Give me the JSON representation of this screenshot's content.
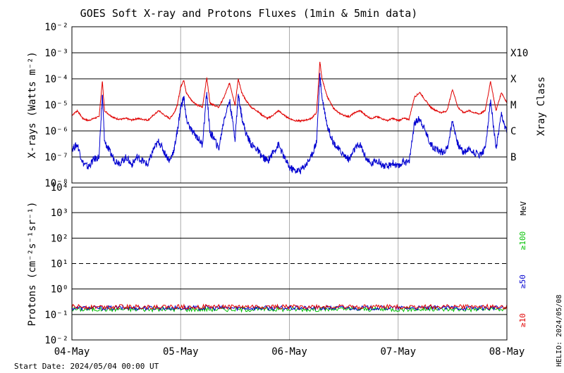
{
  "title": "GOES Soft X-ray and Protons Fluxes   (1min & 5min data)",
  "start_date": "Start Date: 2024/05/04 00:00 UT",
  "credit": "HELIO: 2024/05/08",
  "chart_data": [
    {
      "type": "line",
      "panel": "xray",
      "ylabel": "X-rays (Watts m⁻²)",
      "yscale": "log",
      "ylim": [
        1e-08,
        0.01
      ],
      "ytick_labels": [
        "10⁻²",
        "10⁻³",
        "10⁻⁴",
        "10⁻⁵",
        "10⁻⁶",
        "10⁻⁷",
        "10⁻⁸"
      ],
      "xlim": [
        "2024-05-04",
        "2024-05-08"
      ],
      "xtick_labels": [
        "04-May",
        "05-May",
        "06-May",
        "07-May",
        "08-May"
      ],
      "right_axis_label": "Xray Class",
      "class_labels": [
        {
          "label": "X10",
          "value": 0.001
        },
        {
          "label": "X",
          "value": 0.0001
        },
        {
          "label": "M",
          "value": 1e-05
        },
        {
          "label": "C",
          "value": 1e-06
        },
        {
          "label": "B",
          "value": 1e-07
        }
      ],
      "series": [
        {
          "color": "#e00000",
          "day": [
            0,
            0.05,
            0.1,
            0.15,
            0.2,
            0.25,
            0.28,
            0.3,
            0.35,
            0.4,
            0.45,
            0.5,
            0.55,
            0.6,
            0.65,
            0.7,
            0.75,
            0.8,
            0.85,
            0.9,
            0.94,
            0.97,
            1.0,
            1.03,
            1.05,
            1.1,
            1.15,
            1.2,
            1.24,
            1.27,
            1.3,
            1.35,
            1.4,
            1.45,
            1.5,
            1.53,
            1.56,
            1.6,
            1.65,
            1.7,
            1.75,
            1.8,
            1.85,
            1.9,
            1.95,
            2.0,
            2.05,
            2.1,
            2.15,
            2.2,
            2.25,
            2.28,
            2.3,
            2.35,
            2.4,
            2.45,
            2.5,
            2.55,
            2.6,
            2.65,
            2.7,
            2.75,
            2.8,
            2.85,
            2.9,
            2.95,
            3.0,
            3.05,
            3.1,
            3.15,
            3.2,
            3.25,
            3.3,
            3.35,
            3.4,
            3.45,
            3.5,
            3.55,
            3.6,
            3.65,
            3.7,
            3.75,
            3.8,
            3.85,
            3.9,
            3.95,
            4.0
          ],
          "values": [
            4e-06,
            6e-06,
            3e-06,
            2.5e-06,
            3e-06,
            3.5e-06,
            8e-05,
            6e-06,
            4e-06,
            3e-06,
            2.8e-06,
            3e-06,
            2.6e-06,
            3e-06,
            2.8e-06,
            2.6e-06,
            4e-06,
            6e-06,
            4e-06,
            3e-06,
            5e-06,
            1e-05,
            5e-05,
            9e-05,
            3e-05,
            1.5e-05,
            1e-05,
            8e-06,
            0.00011,
            1.2e-05,
            1e-05,
            8e-06,
            2e-05,
            7e-05,
            1e-05,
            0.0001,
            3e-05,
            1.5e-05,
            8e-06,
            6e-06,
            4e-06,
            3e-06,
            4e-06,
            6e-06,
            4e-06,
            3e-06,
            2.5e-06,
            2.4e-06,
            2.6e-06,
            3e-06,
            5e-06,
            0.00045,
            0.0001,
            2e-05,
            8e-06,
            5e-06,
            4e-06,
            3.5e-06,
            5e-06,
            6e-06,
            4e-06,
            3e-06,
            3.5e-06,
            3e-06,
            2.5e-06,
            3e-06,
            2.5e-06,
            3e-06,
            2.8e-06,
            2e-05,
            3e-05,
            1.5e-05,
            8e-06,
            6e-06,
            5e-06,
            6e-06,
            4e-05,
            8e-06,
            5e-06,
            6e-06,
            5e-06,
            4.5e-06,
            6e-06,
            8e-05,
            6e-06,
            3e-05,
            1.2e-05
          ]
        },
        {
          "color": "#0000d0",
          "day": [
            0,
            0.05,
            0.1,
            0.15,
            0.2,
            0.25,
            0.28,
            0.3,
            0.35,
            0.4,
            0.45,
            0.5,
            0.55,
            0.6,
            0.65,
            0.7,
            0.75,
            0.8,
            0.85,
            0.9,
            0.94,
            0.97,
            1.0,
            1.03,
            1.05,
            1.1,
            1.15,
            1.2,
            1.24,
            1.27,
            1.3,
            1.35,
            1.4,
            1.45,
            1.5,
            1.53,
            1.56,
            1.6,
            1.65,
            1.7,
            1.75,
            1.8,
            1.85,
            1.9,
            1.95,
            2.0,
            2.05,
            2.1,
            2.15,
            2.2,
            2.25,
            2.28,
            2.3,
            2.35,
            2.4,
            2.45,
            2.5,
            2.55,
            2.6,
            2.65,
            2.7,
            2.75,
            2.8,
            2.85,
            2.9,
            2.95,
            3.0,
            3.05,
            3.1,
            3.15,
            3.2,
            3.25,
            3.3,
            3.35,
            3.4,
            3.45,
            3.5,
            3.55,
            3.6,
            3.65,
            3.7,
            3.75,
            3.8,
            3.85,
            3.9,
            3.95,
            4.0
          ],
          "values": [
            2e-07,
            3e-07,
            6e-08,
            4e-08,
            8e-08,
            1e-07,
            2.5e-05,
            4e-07,
            1.5e-07,
            7e-08,
            6e-08,
            1e-07,
            5e-08,
            1e-07,
            7e-08,
            5e-08,
            2e-07,
            4e-07,
            1.5e-07,
            7e-08,
            2e-07,
            1e-06,
            8e-06,
            2e-05,
            3e-06,
            1e-06,
            6e-07,
            3e-07,
            3e-05,
            8e-07,
            6e-07,
            2e-07,
            3e-06,
            1.5e-05,
            5e-07,
            2.5e-05,
            4e-06,
            8e-07,
            3e-07,
            2e-07,
            1e-07,
            7e-08,
            1.5e-07,
            3e-07,
            1e-07,
            4e-08,
            3e-08,
            3e-08,
            5e-08,
            1e-07,
            4e-07,
            0.00013,
            2e-05,
            1.5e-06,
            4e-07,
            2e-07,
            1.2e-07,
            8e-08,
            2e-07,
            3e-07,
            1e-07,
            5e-08,
            8e-08,
            5e-08,
            4e-08,
            6e-08,
            4e-08,
            7e-08,
            6e-08,
            2e-06,
            3e-06,
            1e-06,
            3e-07,
            2e-07,
            1.5e-07,
            2e-07,
            2.5e-06,
            3e-07,
            1.5e-07,
            2e-07,
            1.5e-07,
            1.2e-07,
            2e-07,
            1.5e-05,
            2e-07,
            4e-06,
            8e-07
          ]
        }
      ]
    },
    {
      "type": "line",
      "panel": "protons",
      "ylabel": "Protons (cm⁻²s⁻¹sr⁻¹)",
      "yscale": "log",
      "ylim": [
        0.01,
        10000
      ],
      "ytick_labels": [
        "10⁴",
        "10³",
        "10²",
        "10¹",
        "10⁰",
        "10⁻¹",
        "10⁻²"
      ],
      "xlim": [
        "2024-05-04",
        "2024-05-08"
      ],
      "xtick_labels": [
        "04-May",
        "05-May",
        "06-May",
        "07-May",
        "08-May"
      ],
      "threshold": 10,
      "unit_label": "MeV",
      "legend_labels": [
        {
          "label": "≥100",
          "color": "#00c000"
        },
        {
          "label": "≥50",
          "color": "#0000d0"
        },
        {
          "label": "≥10",
          "color": "#e00000"
        }
      ],
      "series": [
        {
          "color": "#00c000",
          "level": 0.16
        },
        {
          "color": "#0000d0",
          "level": 0.18
        },
        {
          "color": "#e00000",
          "level": 0.2
        }
      ]
    }
  ]
}
